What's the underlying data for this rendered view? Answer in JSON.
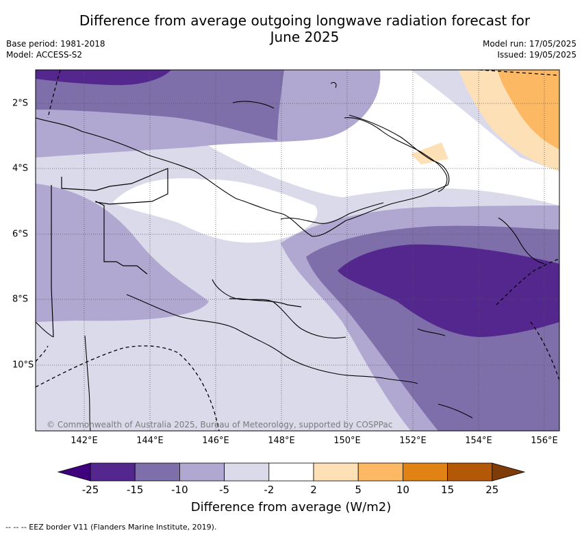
{
  "title_line1": "Difference from average outgoing longwave radiation forecast for",
  "title_line2": "June 2025",
  "meta": {
    "base_period": "Base period: 1981-2018",
    "model": "Model: ACCESS-S2",
    "model_run": "Model run: 17/05/2025",
    "issued": "Issued: 19/05/2025"
  },
  "map": {
    "x_ticks": [
      "142°E",
      "144°E",
      "146°E",
      "148°E",
      "150°E",
      "152°E",
      "154°E",
      "156°E"
    ],
    "y_ticks": [
      "2°S",
      "4°S",
      "6°S",
      "8°S",
      "10°S"
    ],
    "copyright": "© Commonwealth of Australia 2025, Bureau of Meteorology, supported by COSPPac"
  },
  "colorbar": {
    "title": "Difference from average (W/m2)",
    "labels": [
      "-25",
      "-15",
      "-10",
      "-5",
      "-2",
      "2",
      "5",
      "10",
      "15",
      "25"
    ],
    "colors": [
      "#54278f",
      "#7e6ea9",
      "#b0a8d1",
      "#dadaea",
      "#ffffff",
      "#fee0b6",
      "#fdb863",
      "#e08214",
      "#b35806"
    ],
    "under_color": "#3f007d",
    "over_color": "#7f3b08"
  },
  "footer": "--  --  -- EEZ border V11 (Flanders Marine Institute, 2019)."
}
